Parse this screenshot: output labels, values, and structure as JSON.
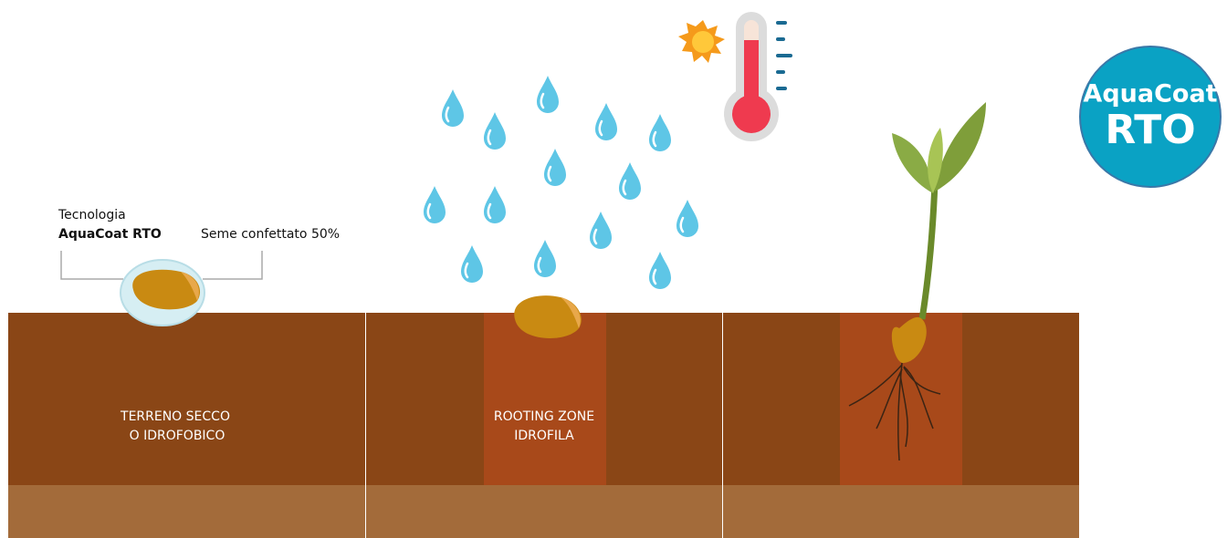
{
  "seed_label": {
    "line1": "Tecnologia",
    "line2": "AquaCoat RTO"
  },
  "coating_label": "Seme confettato 50%",
  "panels": [
    {
      "label_lines": [
        "TERRENO SECCO",
        "O IDROFOBICO"
      ]
    },
    {
      "label_lines": [
        "ROOTING ZONE",
        "IDROFILA"
      ]
    }
  ],
  "badge": {
    "line1": "AquaCoat",
    "line2": "RTO"
  }
}
